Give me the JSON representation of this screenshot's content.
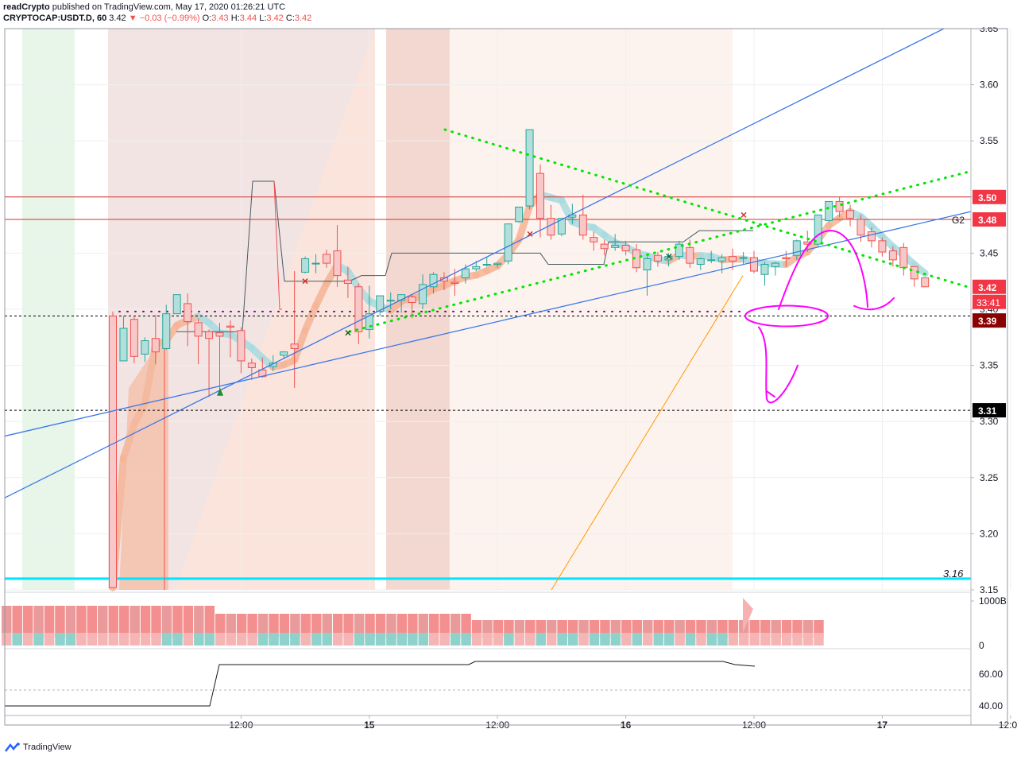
{
  "header": {
    "publisher": "readCrypto",
    "published_text": "published on TradingView.com, May 17, 2020 01:26:21 UTC",
    "symbol": "CRYPTOCAP:USDT.D, 60",
    "last": "3.42",
    "change": "−0.03 (−0.99%)",
    "o_label": "O:",
    "o_value": "3.43",
    "h_label": "H:",
    "h_value": "3.44",
    "l_label": "L:",
    "l_value": "3.42",
    "c_label": "C:",
    "c_value": "3.42"
  },
  "footer": {
    "brand": "TradingView"
  },
  "colors": {
    "up": "#26a69a",
    "down": "#ef5350",
    "blue_line": "#2962ff",
    "green_dots": "#00e600",
    "magenta": "#ff00ff",
    "cyan": "#00e5ff",
    "purple_dots": "#800080",
    "orange": "#ff9800"
  },
  "chart_data": {
    "type": "candlestick",
    "x_axis": {
      "ticks": [
        {
          "i": 12,
          "label": "12:00"
        },
        {
          "i": 24,
          "label": "15"
        },
        {
          "i": 36,
          "label": "12:00"
        },
        {
          "i": 48,
          "label": "16"
        },
        {
          "i": 60,
          "label": "12:00"
        },
        {
          "i": 72,
          "label": "17"
        },
        {
          "i": 84,
          "label": "12:00"
        }
      ]
    },
    "y_axis": {
      "min": 3.15,
      "max": 3.65,
      "ticks": [
        "3.15",
        "3.20",
        "3.25",
        "3.30",
        "3.35",
        "3.40",
        "3.45",
        "3.50",
        "3.55",
        "3.60",
        "3.65"
      ]
    },
    "price_labels": [
      {
        "value": 3.5,
        "text": "3.50",
        "bg": "#f23645",
        "fg": "#ffffff"
      },
      {
        "value": 3.48,
        "text": "3.48",
        "bg": "#f23645",
        "fg": "#ffffff"
      },
      {
        "value": 3.42,
        "text": "3.42",
        "bg": "#f23645",
        "fg": "#ffffff"
      },
      {
        "value": 3.39,
        "text": "3.39",
        "bg": "#8b0000",
        "fg": "#ffffff"
      },
      {
        "value": 3.31,
        "text": "3.31",
        "bg": "#000000",
        "fg": "#ffffff"
      }
    ],
    "countdown": "33:41",
    "level_label": {
      "value": 3.16,
      "text": "3.16"
    },
    "g2_label": "G2",
    "candles": [
      [
        3.394,
        3.398,
        3.152,
        3.152
      ],
      [
        3.354,
        3.394,
        3.383,
        3.403
      ],
      [
        3.391,
        3.394,
        3.358,
        3.352
      ],
      [
        3.36,
        3.375,
        3.372,
        3.353
      ],
      [
        3.374,
        3.395,
        3.362,
        3.351
      ],
      [
        3.365,
        3.404,
        3.396,
        3.364
      ],
      [
        3.396,
        3.406,
        3.413,
        3.396
      ],
      [
        3.405,
        3.414,
        3.389,
        3.367
      ],
      [
        3.388,
        3.392,
        3.376,
        3.351
      ],
      [
        3.38,
        3.382,
        3.374,
        3.322
      ],
      [
        3.379,
        3.388,
        3.376,
        3.328
      ],
      [
        3.385,
        3.39,
        3.384,
        3.357
      ],
      [
        3.381,
        3.384,
        3.354,
        3.343
      ],
      [
        3.352,
        3.356,
        3.348,
        3.337
      ],
      [
        3.346,
        3.357,
        3.34,
        3.339
      ],
      [
        3.349,
        3.359,
        3.352,
        3.345
      ],
      [
        3.359,
        3.358,
        3.362,
        3.356
      ],
      [
        3.369,
        3.434,
        3.365,
        3.33
      ],
      [
        3.433,
        3.447,
        3.445,
        3.432
      ],
      [
        3.441,
        3.449,
        3.441,
        3.432
      ],
      [
        3.449,
        3.453,
        3.441,
        3.437
      ],
      [
        3.452,
        3.475,
        3.43,
        3.42
      ],
      [
        3.426,
        3.438,
        3.423,
        3.41
      ],
      [
        3.42,
        3.423,
        3.38,
        3.369
      ],
      [
        3.382,
        3.421,
        3.396,
        3.374
      ],
      [
        3.398,
        3.407,
        3.412,
        3.394
      ],
      [
        3.408,
        3.415,
        3.408,
        3.4
      ],
      [
        3.408,
        3.413,
        3.413,
        3.397
      ],
      [
        3.411,
        3.413,
        3.406,
        3.392
      ],
      [
        3.405,
        3.431,
        3.422,
        3.4
      ],
      [
        3.42,
        3.433,
        3.431,
        3.414
      ],
      [
        3.428,
        3.433,
        3.425,
        3.417
      ],
      [
        3.424,
        3.436,
        3.423,
        3.412
      ],
      [
        3.428,
        3.44,
        3.436,
        3.423
      ],
      [
        3.436,
        3.443,
        3.438,
        3.434
      ],
      [
        3.44,
        3.446,
        3.44,
        3.438
      ],
      [
        3.44,
        3.441,
        3.441,
        3.437
      ],
      [
        3.443,
        3.456,
        3.476,
        3.44
      ],
      [
        3.478,
        3.48,
        3.491,
        3.477
      ],
      [
        3.492,
        3.511,
        3.56,
        3.489
      ],
      [
        3.521,
        3.529,
        3.481,
        3.464
      ],
      [
        3.481,
        3.493,
        3.466,
        3.462
      ],
      [
        3.467,
        3.471,
        3.481,
        3.465
      ],
      [
        3.482,
        3.494,
        3.484,
        3.476
      ],
      [
        3.484,
        3.502,
        3.466,
        3.462
      ],
      [
        3.464,
        3.469,
        3.46,
        3.452
      ],
      [
        3.458,
        3.462,
        3.454,
        3.448
      ],
      [
        3.455,
        3.467,
        3.457,
        3.452
      ],
      [
        3.457,
        3.461,
        3.452,
        3.448
      ],
      [
        3.453,
        3.458,
        3.437,
        3.433
      ],
      [
        3.435,
        3.447,
        3.445,
        3.412
      ],
      [
        3.448,
        3.451,
        3.443,
        3.438
      ],
      [
        3.444,
        3.45,
        3.447,
        3.438
      ],
      [
        3.447,
        3.461,
        3.458,
        3.444
      ],
      [
        3.455,
        3.462,
        3.441,
        3.437
      ],
      [
        3.44,
        3.446,
        3.445,
        3.435
      ],
      [
        3.444,
        3.452,
        3.444,
        3.441
      ],
      [
        3.443,
        3.449,
        3.446,
        3.432
      ],
      [
        3.447,
        3.454,
        3.443,
        3.435
      ],
      [
        3.446,
        3.451,
        3.446,
        3.44
      ],
      [
        3.446,
        3.452,
        3.434,
        3.432
      ],
      [
        3.431,
        3.442,
        3.44,
        3.421
      ],
      [
        3.438,
        3.442,
        3.441,
        3.43
      ],
      [
        3.446,
        3.452,
        3.445,
        3.438
      ],
      [
        3.448,
        3.462,
        3.461,
        3.444
      ],
      [
        3.46,
        3.47,
        3.458,
        3.451
      ],
      [
        3.458,
        3.47,
        3.484,
        3.455
      ],
      [
        3.479,
        3.492,
        3.496,
        3.478
      ],
      [
        3.496,
        3.5,
        3.487,
        3.482
      ],
      [
        3.488,
        3.493,
        3.481,
        3.474
      ],
      [
        3.48,
        3.484,
        3.466,
        3.46
      ],
      [
        3.469,
        3.473,
        3.461,
        3.455
      ],
      [
        3.461,
        3.464,
        3.451,
        3.447
      ],
      [
        3.452,
        3.456,
        3.444,
        3.438
      ],
      [
        3.455,
        3.459,
        3.437,
        3.43
      ],
      [
        3.438,
        3.434,
        3.427,
        3.42
      ],
      [
        3.428,
        3.428,
        3.42,
        3.42
      ]
    ],
    "volume_axis": {
      "ticks": [
        "1000B",
        "0"
      ]
    },
    "oscillator_axis": {
      "ticks": [
        "60.00",
        "40.00"
      ],
      "dashed_level": 50
    }
  }
}
